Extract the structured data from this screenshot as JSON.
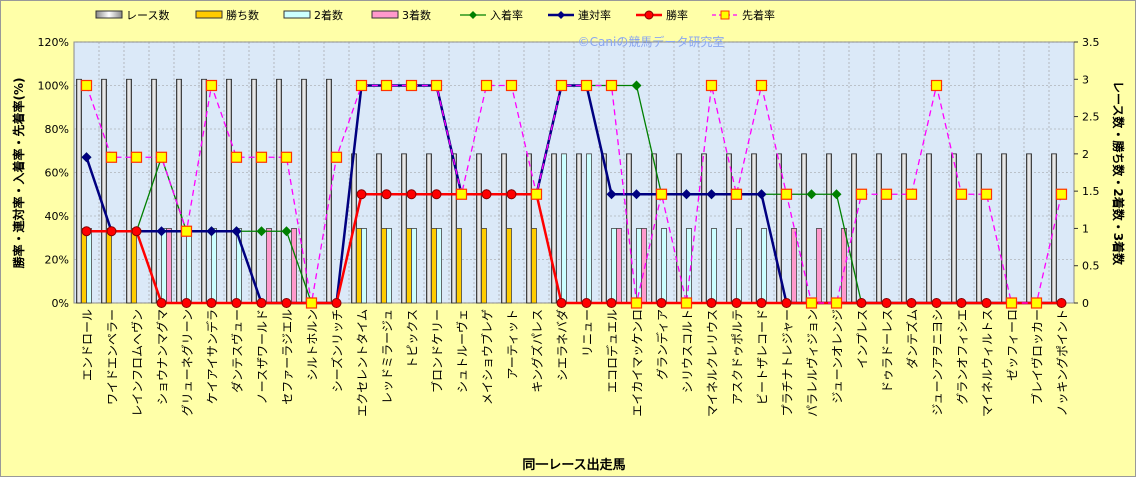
{
  "chart_data": {
    "type": "bar+line",
    "watermark": "©Caniの競馬データ研究室",
    "xlabel": "同一レース出走馬",
    "ylabel_left": "勝率・連対率・入着率・先着率(%)",
    "ylabel_right": "レース数・勝ち数・2着数・3着数",
    "ylim_left": [
      0,
      120
    ],
    "ylim_right": [
      0,
      3.5
    ],
    "left_ticks": [
      "0%",
      "20%",
      "40%",
      "60%",
      "80%",
      "100%",
      "120%"
    ],
    "right_ticks": [
      "0",
      "0.5",
      "1",
      "1.5",
      "2",
      "2.5",
      "3",
      "3.5"
    ],
    "legend": [
      "レース数",
      "勝ち数",
      "2着数",
      "3着数",
      "入着率",
      "連対率",
      "勝率",
      "先着率"
    ],
    "colors": {
      "races": "#e8e8e8",
      "wins": "#ffcc00",
      "second": "#ccffff",
      "third": "#ff99cc",
      "nyu": "#008000",
      "ren": "#000080",
      "win_rate": "#ff0000",
      "sen": "#ff00ff"
    },
    "categories": [
      "エンドロール",
      "ワイドエンペラー",
      "レインフロムヘヴン",
      "ショウナンマグマ",
      "グリューネグリーン",
      "ケイアイサンデラ",
      "ダンテスヴュー",
      "ノースザワールド",
      "セファーラジエル",
      "シルトホルン",
      "シーズンリッチ",
      "エクセレントタイム",
      "レッドミラージュ",
      "トピックス",
      "ブロンドケリー",
      "シュトルーヴェ",
      "メイショウブレゲ",
      "アーティット",
      "キングズパレス",
      "シエラネバダ",
      "リニュー",
      "エコロデュエル",
      "エイカイマッケンロ",
      "グランディア",
      "シリウスコルト",
      "マイネルクレリウス",
      "アスクドゥポルテ",
      "ビートザレコード",
      "プラチナトレジャー",
      "パラレルヴィジョン",
      "ジューンオレンジ",
      "インプレス",
      "ドゥラドーレス",
      "ダンテズム",
      "ジューンアヲニヨシ",
      "グランオフィシエ",
      "マイネルウィルトス",
      "ゼッフィーロ",
      "ブレイヴロッカー",
      "ノッキングポイント"
    ],
    "series": [
      {
        "name": "レース数",
        "axis": "right",
        "values": [
          3,
          3,
          3,
          3,
          3,
          3,
          3,
          3,
          3,
          3,
          3,
          2,
          2,
          2,
          2,
          2,
          2,
          2,
          2,
          2,
          2,
          2,
          2,
          2,
          2,
          2,
          2,
          2,
          2,
          2,
          2,
          2,
          2,
          2,
          2,
          2,
          2,
          2,
          2,
          2
        ]
      },
      {
        "name": "勝ち数",
        "axis": "right",
        "values": [
          1,
          1,
          1,
          0,
          0,
          0,
          0,
          0,
          0,
          0,
          0,
          1,
          1,
          1,
          1,
          1,
          1,
          1,
          1,
          0,
          0,
          0,
          0,
          0,
          0,
          0,
          0,
          0,
          0,
          0,
          0,
          0,
          0,
          0,
          0,
          0,
          0,
          0,
          0,
          0
        ]
      },
      {
        "name": "2着数",
        "axis": "right",
        "values": [
          1,
          0,
          0,
          1,
          1,
          1,
          1,
          0,
          0,
          0,
          0,
          1,
          1,
          1,
          1,
          0,
          0,
          0,
          0,
          2,
          2,
          1,
          1,
          1,
          1,
          1,
          1,
          1,
          0,
          0,
          0,
          0,
          0,
          0,
          0,
          0,
          0,
          0,
          0,
          0
        ]
      },
      {
        "name": "3着数",
        "axis": "right",
        "values": [
          0,
          0,
          0,
          1,
          0,
          0,
          0,
          1,
          1,
          0,
          0,
          0,
          0,
          0,
          0,
          0,
          0,
          0,
          0,
          0,
          0,
          1,
          1,
          0,
          0,
          0,
          0,
          0,
          1,
          1,
          1,
          0,
          0,
          0,
          0,
          0,
          0,
          0,
          0,
          0
        ]
      },
      {
        "name": "入着率",
        "axis": "left",
        "values": [
          67,
          33,
          33,
          67,
          33,
          33,
          33,
          33,
          33,
          0,
          0,
          100,
          100,
          100,
          100,
          50,
          50,
          50,
          50,
          100,
          100,
          100,
          100,
          50,
          50,
          50,
          50,
          50,
          50,
          50,
          50,
          0,
          0,
          0,
          0,
          0,
          0,
          0,
          0,
          0
        ]
      },
      {
        "name": "連対率",
        "axis": "left",
        "values": [
          67,
          33,
          33,
          33,
          33,
          33,
          33,
          0,
          0,
          0,
          0,
          100,
          100,
          100,
          100,
          50,
          50,
          50,
          50,
          100,
          100,
          50,
          50,
          50,
          50,
          50,
          50,
          50,
          0,
          0,
          0,
          0,
          0,
          0,
          0,
          0,
          0,
          0,
          0,
          0
        ]
      },
      {
        "name": "勝率",
        "axis": "left",
        "values": [
          33,
          33,
          33,
          0,
          0,
          0,
          0,
          0,
          0,
          0,
          0,
          50,
          50,
          50,
          50,
          50,
          50,
          50,
          50,
          0,
          0,
          0,
          0,
          0,
          0,
          0,
          0,
          0,
          0,
          0,
          0,
          0,
          0,
          0,
          0,
          0,
          0,
          0,
          0,
          0
        ]
      },
      {
        "name": "先着率",
        "axis": "left",
        "values": [
          100,
          67,
          67,
          67,
          33,
          100,
          67,
          67,
          67,
          0,
          67,
          100,
          100,
          100,
          100,
          50,
          100,
          100,
          50,
          100,
          100,
          100,
          0,
          50,
          0,
          100,
          50,
          100,
          50,
          0,
          0,
          50,
          50,
          50,
          100,
          50,
          50,
          0,
          0,
          50
        ]
      }
    ]
  }
}
